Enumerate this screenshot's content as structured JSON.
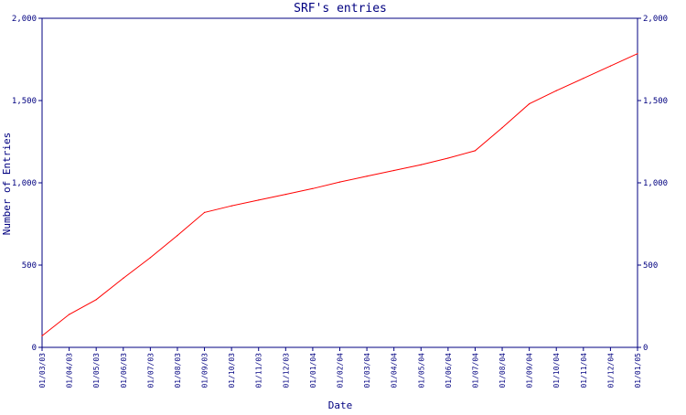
{
  "chart_data": {
    "type": "line",
    "title": "SRF's entries",
    "xlabel": "Date",
    "ylabel": "Number of Entries",
    "ylim": [
      0,
      2000
    ],
    "y_ticks": [
      0,
      500,
      1000,
      1500,
      2000
    ],
    "y_tick_labels": [
      "0",
      "500",
      "1,000",
      "1,500",
      "2,000"
    ],
    "x_tick_labels": [
      "01/03/03",
      "01/04/03",
      "01/05/03",
      "01/06/03",
      "01/07/03",
      "01/08/03",
      "01/09/03",
      "01/10/03",
      "01/11/03",
      "01/12/03",
      "01/01/04",
      "01/02/04",
      "01/03/04",
      "01/04/04",
      "01/05/04",
      "01/06/04",
      "01/07/04",
      "01/08/04",
      "01/09/04",
      "01/10/04",
      "01/11/04",
      "01/12/04",
      "01/01/05"
    ],
    "grid": false,
    "right_axis": true,
    "colors": {
      "axis": "#000080",
      "line": "#ff0000",
      "text": "#000080"
    },
    "series": [
      {
        "x": [
          "01/03/03",
          "01/04/03",
          "01/05/03",
          "01/06/03",
          "01/07/03",
          "01/08/03",
          "01/09/03",
          "01/10/03",
          "01/11/03",
          "01/12/03",
          "01/01/04",
          "01/02/04",
          "01/03/04",
          "01/04/04",
          "01/05/04",
          "01/06/04",
          "01/07/04",
          "01/08/04",
          "01/09/04",
          "01/10/04",
          "01/11/04",
          "01/12/04",
          "01/01/05"
        ],
        "values": [
          70,
          200,
          290,
          420,
          545,
          680,
          820,
          860,
          895,
          930,
          965,
          1005,
          1040,
          1075,
          1110,
          1150,
          1195,
          1335,
          1480,
          1560,
          1635,
          1710,
          1785
        ]
      }
    ]
  }
}
